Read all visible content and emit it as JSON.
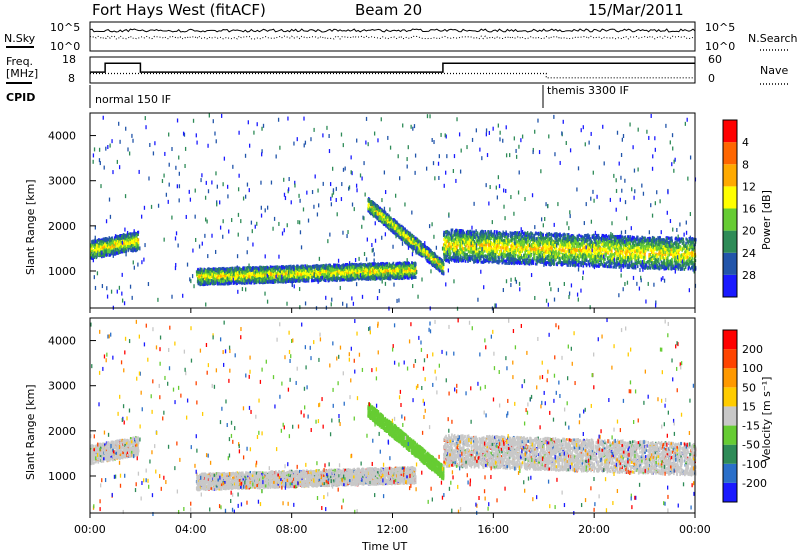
{
  "header": {
    "station": "Fort Hays West (fitACF)",
    "beam": "Beam 20",
    "date": "15/Mar/2011"
  },
  "noise_panel": {
    "left_label": "N.Sky",
    "right_label": "N.Search",
    "left_ticks": [
      "10^5",
      "10^0"
    ],
    "right_ticks": [
      "10^5",
      "10^0"
    ]
  },
  "freq_panel": {
    "left_label_top": "Freq.",
    "left_label_bottom": "[MHz]",
    "right_label": "Nave",
    "left_ticks": [
      "18",
      "8"
    ],
    "right_ticks": [
      "60",
      "0"
    ]
  },
  "cpid_panel": {
    "label": "CPID",
    "modes": [
      {
        "name": "normal 150 IF",
        "start_ut": 0.0
      },
      {
        "name": "themis 3300 IF",
        "start_ut": 18.1
      }
    ]
  },
  "x_axis": {
    "label": "Time UT",
    "tick_labels": [
      "00:00",
      "04:00",
      "08:00",
      "12:00",
      "16:00",
      "20:00",
      "00:00"
    ],
    "range_hours": [
      0,
      24
    ]
  },
  "power_panel": {
    "ylabel": "Slant Range [km]",
    "yticks": [
      "1000",
      "2000",
      "3000",
      "4000"
    ],
    "colorbar_label": "Power [dB]",
    "colorbar_ticks": [
      "4",
      "8",
      "12",
      "16",
      "20",
      "24",
      "28"
    ],
    "colors": [
      "#1a1aff",
      "#2255aa",
      "#2e8b57",
      "#66cc33",
      "#ffff00",
      "#ffaa00",
      "#ff6600",
      "#ff0000"
    ]
  },
  "velocity_panel": {
    "ylabel": "Slant Range [km]",
    "yticks": [
      "1000",
      "2000",
      "3000",
      "4000"
    ],
    "colorbar_label": "Velocity [m s⁻¹]",
    "colorbar_ticks": [
      "200",
      "100",
      "50",
      "15",
      "-15",
      "-50",
      "-100",
      "-200"
    ],
    "colors": [
      "#1a1aff",
      "#2a6fc9",
      "#2e8b57",
      "#66cc33",
      "#c8c8c8",
      "#ffcc00",
      "#ff9900",
      "#ff4400",
      "#ff0000"
    ]
  },
  "chart_data": {
    "type": "heatmap",
    "x_unit": "hours UT",
    "y_unit": "slant range km",
    "ylim": [
      180,
      4500
    ],
    "xlim": [
      0,
      24
    ],
    "scatter_bands": [
      {
        "name": "near range echo",
        "x_start": 0.0,
        "x_end": 1.9,
        "range_center_start": 1500,
        "range_center_end": 1700,
        "width": 400
      },
      {
        "name": "ground scatter",
        "x_start": 4.2,
        "x_end": 12.9,
        "range_center_start": 900,
        "range_center_end": 1050,
        "width": 350
      },
      {
        "name": "descending trace",
        "x_start": 11.0,
        "x_end": 14.0,
        "range_center_start": 2500,
        "range_center_end": 1100,
        "width": 300
      },
      {
        "name": "evening ionospheric scatter",
        "x_start": 14.0,
        "x_end": 24.0,
        "range_center_start": 1600,
        "range_center_end": 1400,
        "width": 700
      }
    ],
    "frequency_mhz": [
      {
        "x": 0,
        "y": 12.2
      },
      {
        "x": 0.6,
        "y": 15.6
      },
      {
        "x": 2.0,
        "y": 12.2
      },
      {
        "x": 14.0,
        "y": 15.6
      },
      {
        "x": 24.0,
        "y": 15.6
      }
    ],
    "nave": [
      {
        "x": 0,
        "y": 22
      },
      {
        "x": 18.1,
        "y": 22
      },
      {
        "x": 18.1,
        "y": 12
      },
      {
        "x": 24,
        "y": 12
      }
    ]
  }
}
